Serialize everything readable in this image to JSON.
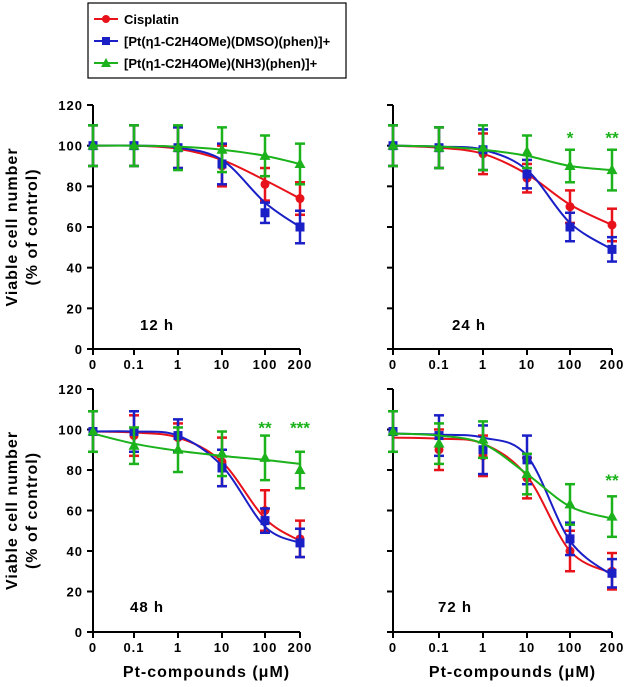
{
  "legend": {
    "title": "",
    "entries": [
      {
        "label": "Cisplatin",
        "color": "#e8121a",
        "marker": "circle"
      },
      {
        "label": "[Pt(η1-C2H4OMe)(DMSO)(phen)]+",
        "color": "#1a1fc6",
        "marker": "square"
      },
      {
        "label": "[Pt(η1-C2H4OMe)(NH3)(phen)]+",
        "color": "#1bb21b",
        "marker": "triangle"
      }
    ]
  },
  "colors": {
    "cisplatin": "#e8121a",
    "dmso": "#1a1fc6",
    "nh3": "#1bb21b",
    "axis": "#000000"
  },
  "chart_data": [
    {
      "type": "scatter",
      "panel_label": "12 h",
      "xlabel": "",
      "ylabel": "Viable cell number\n(% of control)",
      "categories": [
        "0",
        "0.1",
        "1",
        "10",
        "100",
        "200"
      ],
      "yticks": [
        "0",
        "20",
        "40",
        "60",
        "80",
        "100",
        "120"
      ],
      "ylim": [
        0,
        120
      ],
      "grid": false,
      "series": [
        {
          "name": "Cisplatin",
          "values": [
            100,
            100,
            99,
            90,
            81,
            74
          ],
          "errors": [
            10,
            10,
            10,
            10,
            8,
            8
          ],
          "fit": [
            100,
            100,
            98.5,
            93,
            83,
            74
          ]
        },
        {
          "name": "[Pt(η1-C2H4OMe)(DMSO)(phen)]+",
          "values": [
            100,
            100,
            99,
            91,
            67,
            60
          ],
          "errors": [
            10,
            10,
            10,
            10,
            5,
            8
          ],
          "fit": [
            100,
            100,
            99,
            93,
            72,
            60
          ]
        },
        {
          "name": "[Pt(η1-C2H4OMe)(NH3)(phen)]+",
          "values": [
            100,
            100,
            99,
            98,
            95,
            91
          ],
          "errors": [
            10,
            10,
            11,
            11,
            10,
            10
          ],
          "fit": [
            100,
            100,
            99.5,
            98,
            95,
            91
          ]
        }
      ],
      "annotations": []
    },
    {
      "type": "scatter",
      "panel_label": "24 h",
      "xlabel": "",
      "ylabel": "",
      "categories": [
        "0",
        "0.1",
        "1",
        "10",
        "100",
        "200"
      ],
      "yticks": [],
      "ylim": [
        0,
        120
      ],
      "grid": false,
      "series": [
        {
          "name": "Cisplatin",
          "values": [
            100,
            99,
            96,
            84,
            70,
            61
          ],
          "errors": [
            10,
            10,
            10,
            7,
            8,
            8
          ],
          "fit": [
            100,
            99,
            96,
            86,
            71,
            61
          ]
        },
        {
          "name": "[Pt(η1-C2H4OMe)(DMSO)(phen)]+",
          "values": [
            100,
            99,
            98,
            86,
            60,
            49
          ],
          "errors": [
            10,
            10,
            10,
            7,
            7,
            6
          ],
          "fit": [
            100,
            99.5,
            98,
            88,
            62,
            49
          ]
        },
        {
          "name": "[Pt(η1-C2H4OMe)(NH3)(phen)]+",
          "values": [
            100,
            99,
            99,
            97,
            90,
            88
          ],
          "errors": [
            10,
            10,
            11,
            8,
            8,
            10
          ],
          "fit": [
            100,
            99.5,
            98,
            95,
            90,
            88
          ]
        }
      ],
      "annotations": [
        {
          "text": "*",
          "x": "100",
          "y": 101
        },
        {
          "text": "**",
          "x": "200",
          "y": 101
        }
      ]
    },
    {
      "type": "scatter",
      "panel_label": "48 h",
      "xlabel": "Pt-compounds (μM)",
      "ylabel": "Viable cell number\n(% of control)",
      "categories": [
        "0",
        "0.1",
        "1",
        "10",
        "100",
        "200"
      ],
      "yticks": [
        "0",
        "20",
        "40",
        "60",
        "80",
        "100",
        "120"
      ],
      "ylim": [
        0,
        120
      ],
      "grid": false,
      "series": [
        {
          "name": "Cisplatin",
          "values": [
            99,
            97,
            96,
            84,
            60,
            46
          ],
          "errors": [
            10,
            10,
            7,
            12,
            10,
            9
          ],
          "fit": [
            99,
            98.5,
            96,
            84,
            56,
            45
          ]
        },
        {
          "name": "[Pt(η1-C2H4OMe)(DMSO)(phen)]+",
          "values": [
            99,
            99,
            97,
            81,
            55,
            44
          ],
          "errors": [
            10,
            10,
            8,
            9,
            6,
            7
          ],
          "fit": [
            99,
            99,
            97,
            82,
            52,
            44
          ]
        },
        {
          "name": "[Pt(η1-C2H4OMe)(NH3)(phen)]+",
          "values": [
            99,
            92,
            90,
            88,
            86,
            80
          ],
          "errors": [
            10,
            9,
            11,
            11,
            11,
            9
          ],
          "fit": [
            98,
            93,
            89.5,
            87,
            85,
            83
          ]
        }
      ],
      "annotations": [
        {
          "text": "**",
          "x": "100",
          "y": 98
        },
        {
          "text": "***",
          "x": "200",
          "y": 98
        }
      ]
    },
    {
      "type": "scatter",
      "panel_label": "72 h",
      "xlabel": "Pt-compounds (μM)",
      "ylabel": "",
      "categories": [
        "0",
        "0.1",
        "1",
        "10",
        "100",
        "200"
      ],
      "yticks": [],
      "ylim": [
        0,
        120
      ],
      "grid": false,
      "series": [
        {
          "name": "Cisplatin",
          "values": [
            99,
            90,
            87,
            76,
            40,
            30
          ],
          "errors": [
            10,
            10,
            10,
            10,
            10,
            9
          ],
          "fit": [
            96,
            95.5,
            93,
            77,
            40,
            29
          ]
        },
        {
          "name": "[Pt(η1-C2H4OMe)(DMSO)(phen)]+",
          "values": [
            99,
            97,
            90,
            85,
            46,
            29
          ],
          "errors": [
            10,
            10,
            12,
            12,
            8,
            7
          ],
          "fit": [
            98,
            97.5,
            96,
            87,
            45,
            28
          ]
        },
        {
          "name": "[Pt(η1-C2H4OMe)(NH3)(phen)]+",
          "values": [
            99,
            93,
            95,
            78,
            63,
            57
          ],
          "errors": [
            10,
            10,
            9,
            10,
            10,
            10
          ],
          "fit": [
            98,
            97,
            93,
            78,
            62,
            56
          ]
        }
      ],
      "annotations": [
        {
          "text": "**",
          "x": "200",
          "y": 72
        }
      ]
    }
  ]
}
